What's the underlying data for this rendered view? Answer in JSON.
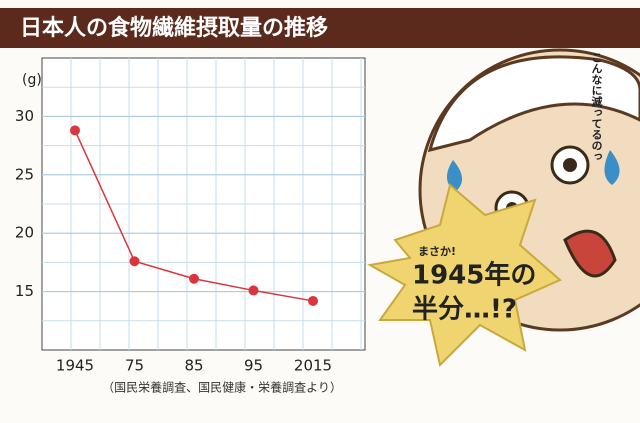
{
  "chart_data": {
    "type": "line",
    "title": "日本人の食物繊維摂取量の推移",
    "y_label": "(g)",
    "categories": [
      "1945",
      "75",
      "85",
      "95",
      "2015"
    ],
    "values": [
      28.8,
      17.6,
      16.1,
      15.1,
      14.2
    ],
    "color": "#d9363e",
    "ylim": [
      10,
      35
    ],
    "yticks": [
      15,
      20,
      25,
      30
    ],
    "grid": true,
    "source": "（国民栄養調査、国民健康・栄養調査より）",
    "annotations": [
      "こんなに減ってるのっ",
      "まさか!",
      "1945年の",
      "半分…!?"
    ]
  }
}
